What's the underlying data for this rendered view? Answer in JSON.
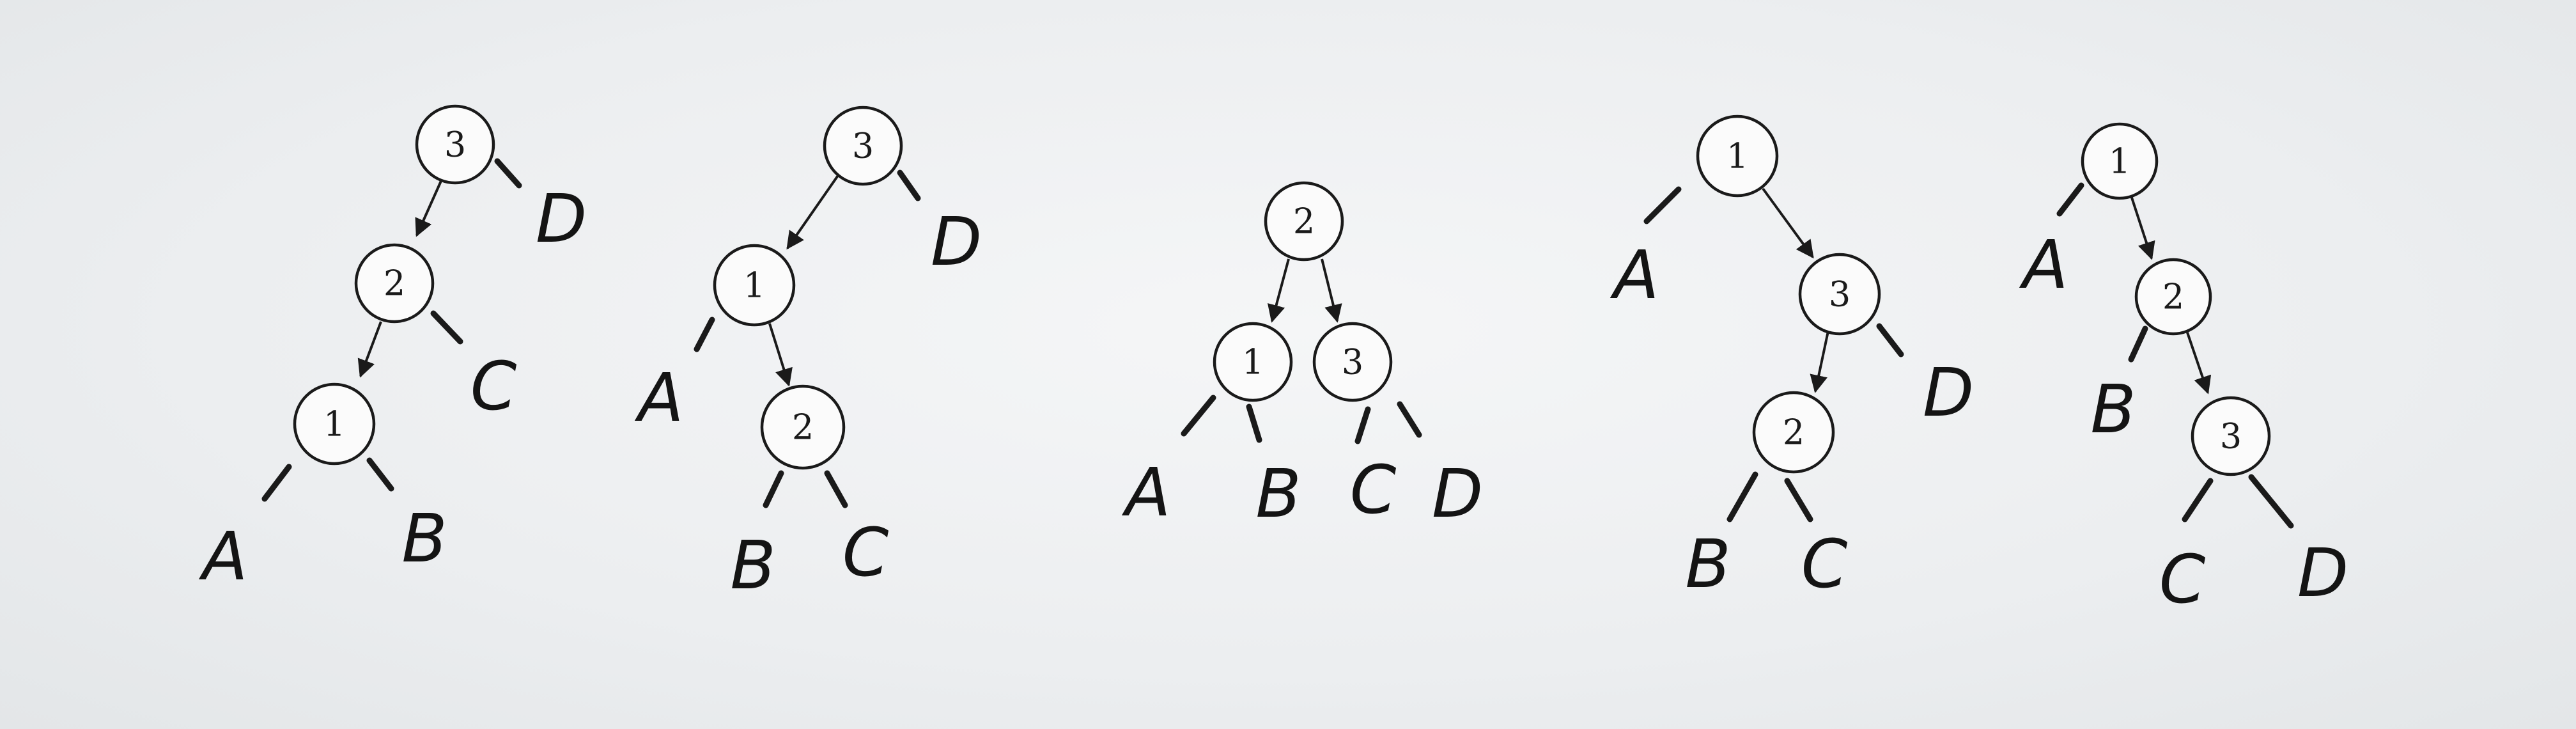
{
  "diagram": {
    "colors": {
      "ink": "#1a1a1a",
      "paper": "#eef0f1"
    },
    "trees": [
      {
        "nodes": [
          {
            "id": "n3",
            "label": "3"
          },
          {
            "id": "n2",
            "label": "2"
          },
          {
            "id": "n1",
            "label": "1"
          }
        ],
        "leaves": [
          {
            "id": "lA",
            "label": "A"
          },
          {
            "id": "lB",
            "label": "B"
          },
          {
            "id": "lC",
            "label": "C"
          },
          {
            "id": "lD",
            "label": "D"
          }
        ]
      },
      {
        "nodes": [
          {
            "id": "n3",
            "label": "3"
          },
          {
            "id": "n1",
            "label": "1"
          },
          {
            "id": "n2",
            "label": "2"
          }
        ],
        "leaves": [
          {
            "id": "lA",
            "label": "A"
          },
          {
            "id": "lB",
            "label": "B"
          },
          {
            "id": "lC",
            "label": "C"
          },
          {
            "id": "lD",
            "label": "D"
          }
        ]
      },
      {
        "nodes": [
          {
            "id": "n2",
            "label": "2"
          },
          {
            "id": "n1",
            "label": "1"
          },
          {
            "id": "n3",
            "label": "3"
          }
        ],
        "leaves": [
          {
            "id": "lA",
            "label": "A"
          },
          {
            "id": "lB",
            "label": "B"
          },
          {
            "id": "lC",
            "label": "C"
          },
          {
            "id": "lD",
            "label": "D"
          }
        ]
      },
      {
        "nodes": [
          {
            "id": "n1",
            "label": "1"
          },
          {
            "id": "n3",
            "label": "3"
          },
          {
            "id": "n2",
            "label": "2"
          }
        ],
        "leaves": [
          {
            "id": "lA",
            "label": "A"
          },
          {
            "id": "lB",
            "label": "B"
          },
          {
            "id": "lC",
            "label": "C"
          },
          {
            "id": "lD",
            "label": "D"
          }
        ]
      },
      {
        "nodes": [
          {
            "id": "n1",
            "label": "1"
          },
          {
            "id": "n2",
            "label": "2"
          },
          {
            "id": "n3",
            "label": "3"
          }
        ],
        "leaves": [
          {
            "id": "lA",
            "label": "A"
          },
          {
            "id": "lB",
            "label": "B"
          },
          {
            "id": "lC",
            "label": "C"
          },
          {
            "id": "lD",
            "label": "D"
          }
        ]
      }
    ]
  }
}
